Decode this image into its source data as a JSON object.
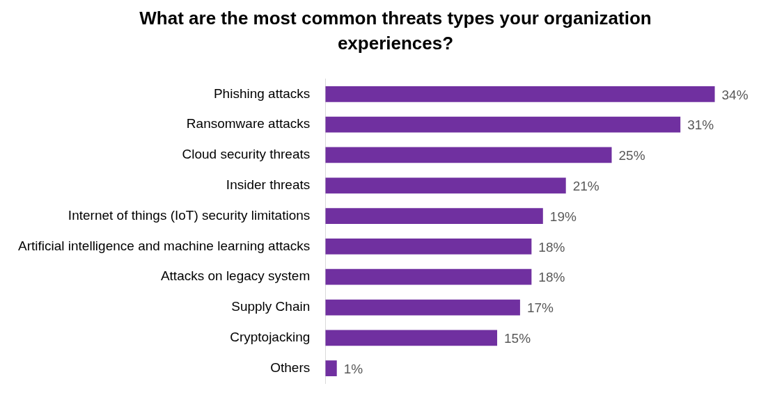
{
  "chart_data": {
    "type": "bar",
    "orientation": "horizontal",
    "title": "What are the most common threats types your organization experiences?",
    "categories": [
      "Phishing attacks",
      "Ransomware attacks",
      "Cloud security threats",
      "Insider threats",
      "Internet of things (IoT) security limitations",
      "Artificial intelligence and machine learning attacks",
      "Attacks on legacy system",
      "Supply Chain",
      "Cryptojacking",
      "Others"
    ],
    "values": [
      34,
      31,
      25,
      21,
      19,
      18,
      18,
      17,
      15,
      1
    ],
    "value_labels": [
      "34%",
      "31%",
      "25%",
      "21%",
      "19%",
      "18%",
      "18%",
      "17%",
      "15%",
      "1%"
    ],
    "color": "#7030a0",
    "tick_labels": "y"
  }
}
